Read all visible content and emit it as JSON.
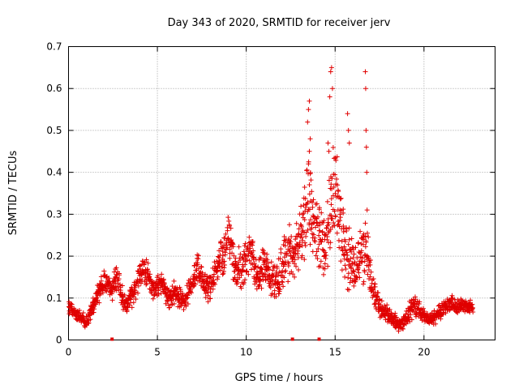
{
  "chart_data": {
    "type": "scatter",
    "title": "Day 343 of 2020, SRMTID for receiver jerv",
    "xlabel": "GPS time / hours",
    "ylabel": "SRMTID / TECUs",
    "xlim": [
      0,
      24
    ],
    "ylim": [
      0,
      0.7
    ],
    "x_ticks": [
      0,
      5,
      10,
      15,
      20
    ],
    "y_ticks": [
      0,
      0.1,
      0.2,
      0.3,
      0.4,
      0.5,
      0.6,
      0.7
    ],
    "x_tick_labels": [
      "0",
      "5",
      "10",
      "15",
      "20"
    ],
    "y_tick_labels": [
      "0",
      "0.1",
      "0.2",
      "0.3",
      "0.4",
      "0.5",
      "0.6",
      "0.7"
    ],
    "grid": true,
    "marker": "+",
    "color": "#e00000",
    "zero_markers_x": [
      2.45,
      12.6,
      14.1
    ],
    "series": [
      {
        "name": "SRMTID",
        "x": [
          0.0,
          0.25,
          0.5,
          0.75,
          1.0,
          1.25,
          1.5,
          1.75,
          2.0,
          2.25,
          2.5,
          2.75,
          3.0,
          3.25,
          3.5,
          3.75,
          4.0,
          4.25,
          4.5,
          4.75,
          5.0,
          5.25,
          5.5,
          5.75,
          6.0,
          6.25,
          6.5,
          6.75,
          7.0,
          7.25,
          7.5,
          7.75,
          8.0,
          8.25,
          8.5,
          8.75,
          9.0,
          9.25,
          9.5,
          9.75,
          10.0,
          10.25,
          10.5,
          10.75,
          11.0,
          11.25,
          11.5,
          11.75,
          12.0,
          12.25,
          12.5,
          12.75,
          13.0,
          13.25,
          13.5,
          13.75,
          14.0,
          14.25,
          14.5,
          14.75,
          15.0,
          15.25,
          15.5,
          15.75,
          16.0,
          16.25,
          16.5,
          16.75,
          17.0,
          17.25,
          17.5,
          17.75,
          18.0,
          18.25,
          18.5,
          18.75,
          19.0,
          19.25,
          19.5,
          19.75,
          20.0,
          20.25,
          20.5,
          20.75,
          21.0,
          21.25,
          21.5,
          21.75,
          22.0,
          22.25,
          22.5,
          22.75
        ],
        "y": [
          0.08,
          0.07,
          0.06,
          0.05,
          0.04,
          0.07,
          0.09,
          0.12,
          0.14,
          0.13,
          0.12,
          0.16,
          0.1,
          0.08,
          0.1,
          0.12,
          0.16,
          0.17,
          0.15,
          0.12,
          0.13,
          0.14,
          0.11,
          0.1,
          0.12,
          0.1,
          0.09,
          0.11,
          0.14,
          0.17,
          0.15,
          0.13,
          0.12,
          0.16,
          0.19,
          0.2,
          0.26,
          0.2,
          0.18,
          0.17,
          0.2,
          0.22,
          0.16,
          0.15,
          0.18,
          0.16,
          0.14,
          0.13,
          0.18,
          0.2,
          0.22,
          0.2,
          0.24,
          0.26,
          0.35,
          0.3,
          0.26,
          0.24,
          0.2,
          0.32,
          0.38,
          0.28,
          0.22,
          0.2,
          0.18,
          0.16,
          0.2,
          0.22,
          0.15,
          0.11,
          0.08,
          0.07,
          0.06,
          0.05,
          0.04,
          0.04,
          0.05,
          0.07,
          0.08,
          0.07,
          0.06,
          0.05,
          0.05,
          0.06,
          0.07,
          0.08,
          0.09,
          0.08,
          0.08,
          0.08,
          0.08,
          0.08
        ]
      }
    ],
    "spread": [
      0.02,
      0.02,
      0.02,
      0.02,
      0.02,
      0.02,
      0.03,
      0.03,
      0.03,
      0.03,
      0.03,
      0.04,
      0.04,
      0.03,
      0.03,
      0.03,
      0.04,
      0.04,
      0.04,
      0.03,
      0.03,
      0.03,
      0.03,
      0.03,
      0.03,
      0.03,
      0.03,
      0.03,
      0.03,
      0.04,
      0.04,
      0.04,
      0.04,
      0.04,
      0.05,
      0.06,
      0.06,
      0.06,
      0.06,
      0.05,
      0.06,
      0.06,
      0.05,
      0.05,
      0.05,
      0.05,
      0.05,
      0.05,
      0.06,
      0.07,
      0.08,
      0.07,
      0.08,
      0.09,
      0.12,
      0.1,
      0.1,
      0.1,
      0.1,
      0.12,
      0.15,
      0.12,
      0.1,
      0.09,
      0.08,
      0.07,
      0.08,
      0.1,
      0.06,
      0.04,
      0.03,
      0.03,
      0.02,
      0.02,
      0.02,
      0.02,
      0.02,
      0.03,
      0.03,
      0.03,
      0.02,
      0.02,
      0.02,
      0.02,
      0.02,
      0.02,
      0.02,
      0.02,
      0.02,
      0.02,
      0.02,
      0.02
    ],
    "outliers": {
      "x": [
        13.45,
        13.5,
        13.55,
        13.6,
        13.55,
        13.5,
        14.6,
        14.65,
        14.7,
        14.75,
        14.8,
        14.85,
        15.7,
        15.75,
        15.8,
        16.7,
        16.72,
        16.74,
        16.76,
        16.78,
        16.8
      ],
      "y": [
        0.52,
        0.55,
        0.57,
        0.48,
        0.45,
        0.42,
        0.47,
        0.45,
        0.58,
        0.64,
        0.65,
        0.6,
        0.54,
        0.5,
        0.47,
        0.64,
        0.6,
        0.5,
        0.46,
        0.4,
        0.31
      ]
    }
  }
}
